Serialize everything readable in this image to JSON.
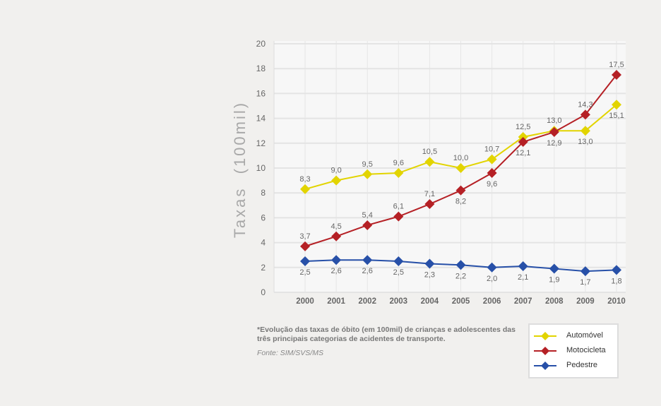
{
  "chart_data": {
    "type": "line",
    "ylabel": "Taxas  (100mil)",
    "ylim": [
      0,
      20
    ],
    "yticks": [
      0,
      2,
      4,
      6,
      8,
      10,
      12,
      14,
      16,
      18,
      20
    ],
    "grid": true,
    "legend_position": "bottom-right",
    "categories": [
      "2000",
      "2001",
      "2002",
      "2003",
      "2004",
      "2005",
      "2006",
      "2007",
      "2008",
      "2009",
      "2010"
    ],
    "series": [
      {
        "name": "Automóvel",
        "color": "#e2d400",
        "values": [
          8.3,
          9.0,
          9.5,
          9.6,
          10.5,
          10.0,
          10.7,
          12.5,
          13.0,
          13.0,
          15.1
        ],
        "labels": [
          "8,3",
          "9,0",
          "9,5",
          "9,6",
          "10,5",
          "10,0",
          "10,7",
          "12,5",
          "13,0",
          "13,0",
          "15,1"
        ]
      },
      {
        "name": "Motocicleta",
        "color": "#b52025",
        "values": [
          3.7,
          4.5,
          5.4,
          6.1,
          7.1,
          8.2,
          9.6,
          12.1,
          12.9,
          14.3,
          17.5
        ],
        "labels": [
          "3,7",
          "4,5",
          "5,4",
          "6,1",
          "7,1",
          "8,2",
          "9,6",
          "12,1",
          "12,9",
          "14,3",
          "17,5"
        ]
      },
      {
        "name": "Pedestre",
        "color": "#2750a8",
        "values": [
          2.5,
          2.6,
          2.6,
          2.5,
          2.3,
          2.2,
          2.0,
          2.1,
          1.9,
          1.7,
          1.8
        ],
        "labels": [
          "2,5",
          "2,6",
          "2,6",
          "2,5",
          "2,3",
          "2,2",
          "2,0",
          "2,1",
          "1,9",
          "1,7",
          "1,8"
        ]
      }
    ]
  },
  "note": "*Evolução das taxas de óbito (em 100mil) de crianças e adolescentes das três principais categorias de acidentes de transporte.",
  "source": "Fonte: SIM/SVS/MS"
}
